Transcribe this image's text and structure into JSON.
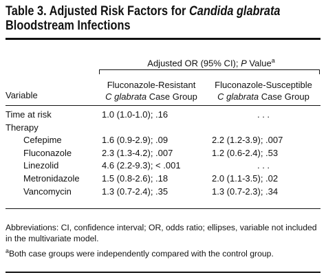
{
  "title": {
    "prefix": "Table 3. Adjusted Risk Factors for ",
    "italic": "Candida glabrata",
    "line2": "Bloodstream Infections"
  },
  "spanning_header": {
    "text_pre": "Adjusted OR (95% CI); ",
    "text_italic": "P",
    "text_post": " Value",
    "footnote_mark": "a"
  },
  "columns": {
    "variable": "Variable",
    "resistant": {
      "line1": "Fluconazole-Resistant",
      "italic": "C glabrata",
      "rest": " Case Group"
    },
    "susceptible": {
      "line1": "Fluconazole-Susceptible",
      "italic": "C glabrata",
      "rest": " Case Group"
    }
  },
  "rows": [
    {
      "variable": "Time at risk",
      "indent": false,
      "resistant": "1.0 (1.0-1.0); .16",
      "susceptible": ". . ."
    },
    {
      "variable": "Therapy",
      "indent": false,
      "resistant": "",
      "susceptible": ""
    },
    {
      "variable": "Cefepime",
      "indent": true,
      "resistant": "1.6 (0.9-2.9); .09",
      "susceptible": "2.2 (1.2-3.9); .007"
    },
    {
      "variable": "Fluconazole",
      "indent": true,
      "resistant": "2.3 (1.3-4.2); .007",
      "susceptible": "1.2 (0.6-2.4); .53"
    },
    {
      "variable": "Linezolid",
      "indent": true,
      "resistant": "4.6 (2.2-9.3); < .001",
      "susceptible": ". . ."
    },
    {
      "variable": "Metronidazole",
      "indent": true,
      "resistant": "1.5 (0.8-2.6); .18",
      "susceptible": "2.0 (1.1-3.5); .02"
    },
    {
      "variable": "Vancomycin",
      "indent": true,
      "resistant": "1.3 (0.7-2.4); .35",
      "susceptible": "1.3 (0.7-2.3); .34"
    }
  ],
  "footnotes": {
    "abbreviations": "Abbreviations: CI, confidence interval; OR, odds ratio; ellipses, variable not included in the multivariate model.",
    "a_mark": "a",
    "a_text": "Both case groups were independently compared with the control group."
  }
}
